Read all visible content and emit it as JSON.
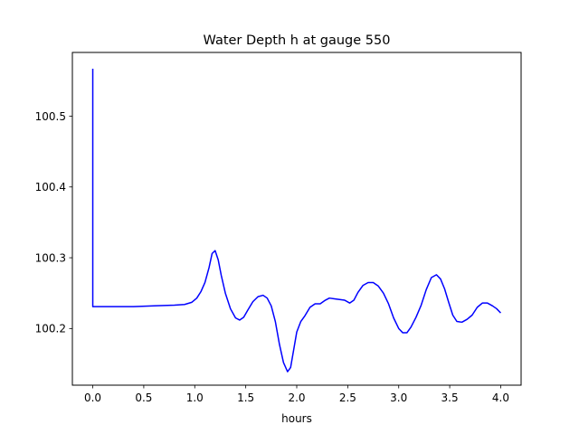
{
  "chart_data": {
    "type": "line",
    "title": "Water Depth h at gauge 550",
    "xlabel": "hours",
    "ylabel": "",
    "xlim": [
      -0.2,
      4.2
    ],
    "ylim": [
      100.12,
      100.59
    ],
    "xticks": [
      0.0,
      0.5,
      1.0,
      1.5,
      2.0,
      2.5,
      3.0,
      3.5,
      4.0
    ],
    "xtick_labels": [
      "0.0",
      "0.5",
      "1.0",
      "1.5",
      "2.0",
      "2.5",
      "3.0",
      "3.5",
      "4.0"
    ],
    "yticks": [
      100.2,
      100.3,
      100.4,
      100.5
    ],
    "ytick_labels": [
      "100.2",
      "100.3",
      "100.4",
      "100.5"
    ],
    "grid": false,
    "legend": "none",
    "series": [
      {
        "color": "#0000ff",
        "x": [
          0.0,
          0.0,
          0.0,
          0.2,
          0.4,
          0.6,
          0.8,
          0.9,
          0.97,
          1.02,
          1.06,
          1.1,
          1.14,
          1.17,
          1.2,
          1.23,
          1.26,
          1.3,
          1.35,
          1.4,
          1.44,
          1.48,
          1.52,
          1.57,
          1.62,
          1.67,
          1.71,
          1.75,
          1.79,
          1.83,
          1.87,
          1.91,
          1.94,
          1.97,
          2.0,
          2.04,
          2.08,
          2.13,
          2.18,
          2.23,
          2.28,
          2.32,
          2.37,
          2.42,
          2.47,
          2.52,
          2.56,
          2.6,
          2.65,
          2.7,
          2.75,
          2.8,
          2.85,
          2.9,
          2.95,
          3.0,
          3.04,
          3.08,
          3.12,
          3.17,
          3.22,
          3.27,
          3.32,
          3.37,
          3.41,
          3.45,
          3.49,
          3.53,
          3.57,
          3.62,
          3.67,
          3.72,
          3.77,
          3.82,
          3.87,
          3.92,
          3.96,
          4.0
        ],
        "y": [
          100.567,
          100.232,
          100.231,
          100.231,
          100.231,
          100.232,
          100.233,
          100.234,
          100.237,
          100.243,
          100.252,
          100.265,
          100.286,
          100.306,
          100.31,
          100.297,
          100.275,
          100.25,
          100.228,
          100.215,
          100.212,
          100.216,
          100.226,
          100.238,
          100.245,
          100.247,
          100.243,
          100.232,
          100.21,
          100.178,
          100.152,
          100.139,
          100.145,
          100.17,
          100.195,
          100.21,
          100.218,
          100.23,
          100.235,
          100.235,
          100.24,
          100.243,
          100.242,
          100.241,
          100.24,
          100.236,
          100.24,
          100.251,
          100.261,
          100.265,
          100.265,
          100.26,
          100.25,
          100.235,
          100.215,
          100.2,
          100.194,
          100.194,
          100.202,
          100.216,
          100.233,
          100.255,
          100.272,
          100.276,
          100.27,
          100.256,
          100.237,
          100.219,
          100.21,
          100.209,
          100.213,
          100.219,
          100.23,
          100.236,
          100.236,
          100.232,
          100.228,
          100.222
        ]
      }
    ]
  }
}
